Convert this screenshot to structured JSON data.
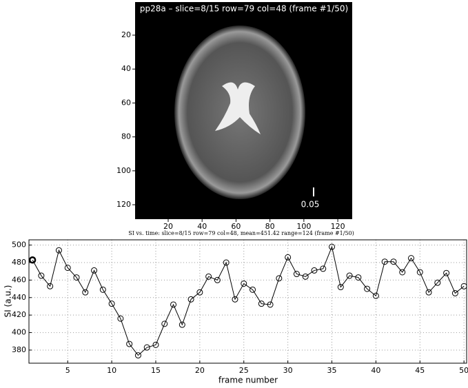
{
  "chart_data": [
    {
      "type": "image",
      "title": "pp28a – slice=8/15  row=79 col=48 (frame #1/50)",
      "annotation": "0.05",
      "xlim": [
        0.5,
        128.5
      ],
      "ylim": [
        0.5,
        128.5
      ],
      "xticks": [
        20,
        40,
        60,
        80,
        100,
        120
      ],
      "yticks": [
        20,
        40,
        60,
        80,
        100,
        120
      ]
    },
    {
      "type": "line",
      "title": "SI vs. time: slice=8/15 row=79 col=48, mean=451.42 range=124 (frame #1/50)",
      "x_label": "frame number",
      "y_label": "SI (a.u.)",
      "x": [
        1,
        2,
        3,
        4,
        5,
        6,
        7,
        8,
        9,
        10,
        11,
        12,
        13,
        14,
        15,
        16,
        17,
        18,
        19,
        20,
        21,
        22,
        23,
        24,
        25,
        26,
        27,
        28,
        29,
        30,
        31,
        32,
        33,
        34,
        35,
        36,
        37,
        38,
        39,
        40,
        41,
        42,
        43,
        44,
        45,
        46,
        47,
        48,
        49,
        50
      ],
      "values": [
        483,
        465,
        453,
        494,
        474,
        463,
        446,
        471,
        449,
        433,
        416,
        387,
        374,
        383,
        386,
        410,
        432,
        409,
        438,
        446,
        464,
        460,
        480,
        438,
        456,
        449,
        433,
        432,
        462,
        486,
        467,
        464,
        471,
        473,
        498,
        452,
        465,
        463,
        450,
        442,
        481,
        481,
        469,
        485,
        469,
        446,
        457,
        468,
        445,
        453
      ],
      "color": "#000000",
      "current_frame": 1,
      "xlim": [
        0.6,
        50.3
      ],
      "ylim": [
        365,
        506
      ],
      "xticks": [
        5,
        10,
        15,
        20,
        25,
        30,
        35,
        40,
        45,
        50
      ],
      "yticks": [
        380,
        400,
        420,
        440,
        460,
        480,
        500
      ],
      "grid": true
    }
  ]
}
